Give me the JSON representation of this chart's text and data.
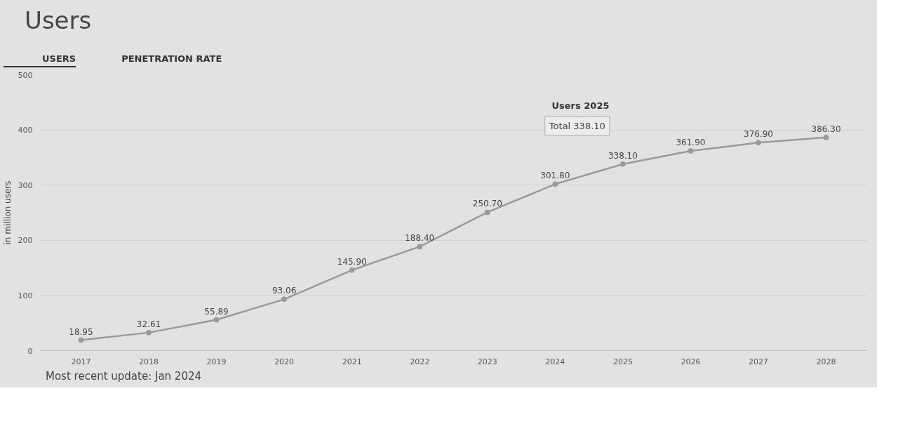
{
  "chart_data": {
    "type": "line",
    "title": "Users",
    "ylabel": "in million users",
    "categories": [
      "2017",
      "2018",
      "2019",
      "2020",
      "2021",
      "2022",
      "2023",
      "2024",
      "2025",
      "2026",
      "2027",
      "2028"
    ],
    "series": [
      {
        "color": "#9a9a9a",
        "values": [
          18.95,
          32.61,
          55.89,
          93.06,
          145.9,
          188.4,
          250.7,
          301.8,
          338.1,
          361.9,
          376.9,
          386.3
        ],
        "value_labels": [
          "18.95",
          "32.61",
          "55.89",
          "93.06",
          "145.90",
          "188.40",
          "250.70",
          "301.80",
          "338.10",
          "361.90",
          "376.90",
          "386.30"
        ]
      }
    ],
    "ylim": [
      0,
      500
    ],
    "yticks": [
      0,
      100,
      200,
      300,
      400,
      500
    ],
    "grid": "y",
    "marker": "circle",
    "line_style": "solid",
    "annotations": [
      "USERS",
      "PENETRATION RATE",
      "Users 2025",
      "Total 338.10",
      "Most recent update: Jan 2024"
    ]
  }
}
